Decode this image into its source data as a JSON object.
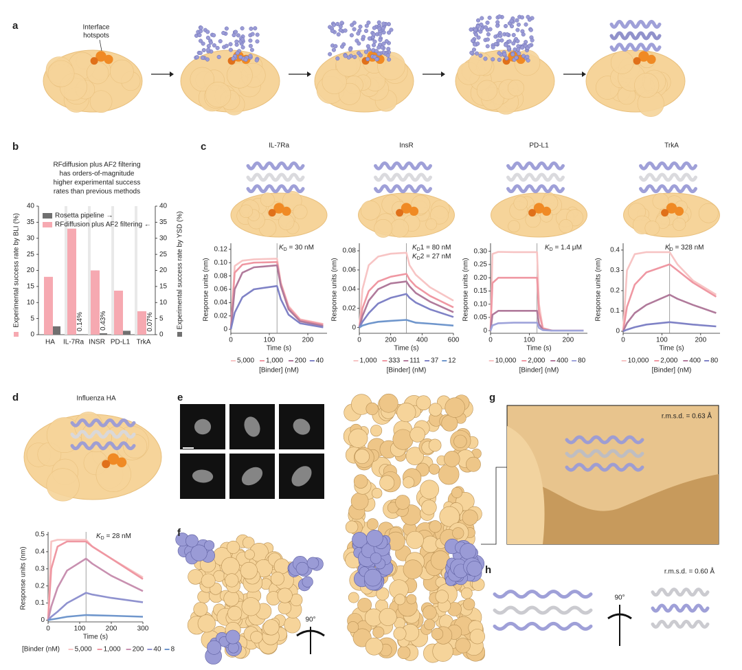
{
  "panel_labels": [
    "a",
    "b",
    "c",
    "d",
    "e",
    "f",
    "g",
    "h"
  ],
  "panel_a": {
    "annotation_lines": [
      "Interface",
      "hotspots"
    ]
  },
  "annotations": {
    "rmsd_g": "r.m.s.d. = 0.63 Å",
    "rmsd_h": "r.m.s.d. = 0.60 Å",
    "rotation_f": "90°",
    "rotation_h": "90°"
  },
  "chart_data": [
    {
      "type": "bar",
      "title_lines": [
        "RFdiffusion plus AF2 filtering",
        "has orders-of-magnitude",
        "higher experimental success",
        "rates than previous methods"
      ],
      "categories": [
        "HA",
        "IL-7Ra",
        "INSR",
        "PD-L1",
        "TrkA"
      ],
      "series": [
        {
          "name": "Rosetta pipeline →",
          "color": "#707070",
          "axis": "y2",
          "values": [
            2.6,
            0.14,
            0.43,
            1.2,
            0.07
          ],
          "value_labels": [
            null,
            "0.14%",
            "0.43%",
            null,
            "0.07%"
          ]
        },
        {
          "name": "RFdiffusion plus AF2 filtering ←",
          "color": "#f6a9b1",
          "values": [
            18,
            33,
            20,
            13.7,
            7.3
          ]
        }
      ],
      "ylabel": "Experimental success rate by BLI (%)",
      "y2label": "Experimental success rate by YSD (%)",
      "ylim": [
        0,
        40
      ],
      "yticks": [
        0,
        5,
        10,
        15,
        20,
        25,
        30,
        35,
        40
      ],
      "y2lim": [
        0,
        40
      ],
      "y2ticks": [
        0,
        5,
        10,
        15,
        20,
        25,
        30,
        35,
        40
      ],
      "legend": "upper left"
    },
    {
      "type": "line",
      "title": "IL-7Ra",
      "xlabel": "Time (s)",
      "ylabel": "Response units (nm)",
      "x": [
        0,
        10,
        30,
        60,
        120,
        130,
        150,
        180,
        240
      ],
      "xlim": [
        0,
        250
      ],
      "xticks": [
        0,
        100,
        200
      ],
      "ylim": [
        -0.006,
        0.125
      ],
      "yticks": [
        0,
        0.02,
        0.04,
        0.06,
        0.08,
        {
          "value": 0.1,
          "label": "0.10"
        },
        0.12
      ],
      "dissociation_start": 120,
      "kd": [
        {
          "symbol": "K",
          "subscript": "D",
          "rest": " = 30 nM"
        }
      ],
      "legend_title": "[Binder] (nM)",
      "series": [
        {
          "name": "5,000",
          "color": "#f7c4c4",
          "values": [
            0,
            0.095,
            0.103,
            0.105,
            0.106,
            0.07,
            0.035,
            0.015,
            0.008
          ]
        },
        {
          "name": "1,000",
          "color": "#ef97a2",
          "values": [
            0,
            0.085,
            0.097,
            0.1,
            0.101,
            0.068,
            0.033,
            0.014,
            0.007
          ]
        },
        {
          "name": "200",
          "color": "#b07a9b",
          "values": [
            0,
            0.06,
            0.085,
            0.093,
            0.096,
            0.065,
            0.03,
            0.012,
            0.005
          ]
        },
        {
          "name": "40",
          "color": "#7f82c6",
          "values": [
            0,
            0.025,
            0.048,
            0.06,
            0.065,
            0.045,
            0.022,
            0.009,
            0.003
          ]
        }
      ]
    },
    {
      "type": "line",
      "title": "InsR",
      "xlabel": "Time (s)",
      "ylabel": "Response units (nm)",
      "x": [
        0,
        20,
        60,
        120,
        200,
        300,
        320,
        360,
        450,
        600
      ],
      "xlim": [
        0,
        600
      ],
      "xticks": [
        0,
        200,
        400,
        600
      ],
      "ylim": [
        -0.006,
        0.085
      ],
      "yticks": [
        0,
        0.02,
        0.04,
        0.06,
        0.08
      ],
      "dissociation_start": 300,
      "kd": [
        {
          "symbol": "K",
          "subscript": "D",
          "rest": "1 = 80 nM"
        },
        {
          "symbol": "K",
          "subscript": "D",
          "rest": "2 = 27 nM"
        }
      ],
      "legend_title": "[Binder] (nM)",
      "series": [
        {
          "name": "1,000",
          "color": "#f7c4c4",
          "values": [
            0,
            0.04,
            0.065,
            0.074,
            0.077,
            0.078,
            0.065,
            0.055,
            0.042,
            0.028
          ]
        },
        {
          "name": "333",
          "color": "#ef97a2",
          "values": [
            0,
            0.02,
            0.038,
            0.048,
            0.053,
            0.056,
            0.05,
            0.043,
            0.033,
            0.021
          ]
        },
        {
          "name": "111",
          "color": "#b07a9b",
          "values": [
            0,
            0.012,
            0.028,
            0.04,
            0.046,
            0.048,
            0.043,
            0.036,
            0.027,
            0.016
          ]
        },
        {
          "name": "37",
          "color": "#7f82c6",
          "values": [
            0,
            0.006,
            0.015,
            0.025,
            0.031,
            0.035,
            0.031,
            0.026,
            0.019,
            0.011
          ]
        },
        {
          "name": "12",
          "color": "#6f96cc",
          "values": [
            0,
            0.002,
            0.004,
            0.006,
            0.007,
            0.008,
            0.007,
            0.005,
            0.004,
            0.002
          ]
        }
      ]
    },
    {
      "type": "line",
      "title": "PD-L1",
      "xlabel": "Time (s)",
      "ylabel": "Response units (nm)",
      "x": [
        0,
        5,
        20,
        60,
        120,
        125,
        135,
        160,
        240
      ],
      "xlim": [
        0,
        250
      ],
      "xticks": [
        0,
        100,
        200
      ],
      "ylim": [
        -0.01,
        0.32
      ],
      "yticks": [
        0,
        0.05,
        {
          "value": 0.1,
          "label": "0.10"
        },
        0.15,
        {
          "value": 0.2,
          "label": "0.20"
        },
        0.25,
        {
          "value": 0.3,
          "label": "0.30"
        }
      ],
      "dissociation_start": 120,
      "kd": [
        {
          "symbol": "K",
          "subscript": "D",
          "rest": " = 1.4 μM"
        }
      ],
      "legend_title": "[Binder] (nM)",
      "series": [
        {
          "name": "10,000",
          "color": "#f7c4c4",
          "values": [
            0,
            0.29,
            0.298,
            0.297,
            0.297,
            0.1,
            0.01,
            0,
            0
          ]
        },
        {
          "name": "2,000",
          "color": "#ef97a2",
          "values": [
            0,
            0.18,
            0.2,
            0.2,
            0.2,
            0.07,
            0.008,
            0,
            0
          ]
        },
        {
          "name": "400",
          "color": "#b07a9b",
          "values": [
            0,
            0.06,
            0.075,
            0.075,
            0.075,
            0.025,
            0.004,
            0,
            0
          ]
        },
        {
          "name": "80",
          "color": "#9ea3da",
          "values": [
            0,
            0.02,
            0.028,
            0.03,
            0.03,
            0.01,
            0.002,
            0,
            0
          ]
        }
      ]
    },
    {
      "type": "line",
      "title": "TrkA",
      "xlabel": "Time (s)",
      "ylabel": "Response units (nm)",
      "x": [
        0,
        10,
        30,
        60,
        120,
        140,
        180,
        240
      ],
      "xlim": [
        0,
        250
      ],
      "xticks": [
        0,
        100,
        200
      ],
      "ylim": [
        -0.01,
        0.42
      ],
      "yticks": [
        0,
        0.1,
        0.2,
        0.3,
        0.4
      ],
      "dissociation_start": 120,
      "kd": [
        {
          "symbol": "K",
          "subscript": "D",
          "rest": " = 328 nM"
        }
      ],
      "legend_title": "[Binder] (nM)",
      "series": [
        {
          "name": "10,000",
          "color": "#f7c4c4",
          "values": [
            0,
            0.3,
            0.38,
            0.39,
            0.39,
            0.33,
            0.25,
            0.18
          ]
        },
        {
          "name": "2,000",
          "color": "#ef97a2",
          "values": [
            0,
            0.12,
            0.23,
            0.29,
            0.33,
            0.3,
            0.24,
            0.17
          ]
        },
        {
          "name": "400",
          "color": "#b07a9b",
          "values": [
            0,
            0.04,
            0.09,
            0.13,
            0.18,
            0.16,
            0.13,
            0.09
          ]
        },
        {
          "name": "80",
          "color": "#7f82c6",
          "values": [
            0,
            0.008,
            0.02,
            0.033,
            0.045,
            0.041,
            0.033,
            0.024
          ]
        }
      ]
    },
    {
      "type": "line",
      "title": "Influenza HA",
      "xlabel": "Time (s)",
      "ylabel": "Response units (nm)",
      "x": [
        0,
        10,
        30,
        60,
        120,
        140,
        200,
        300
      ],
      "xlim": [
        0,
        300
      ],
      "xticks": [
        0,
        100,
        200,
        300
      ],
      "ylim": [
        -0.01,
        0.5
      ],
      "yticks": [
        0,
        0.1,
        0.2,
        0.3,
        0.4,
        0.5
      ],
      "dissociation_start": 120,
      "kd": [
        {
          "symbol": "K",
          "subscript": "D",
          "rest": " = 28 nM"
        }
      ],
      "legend_title": "[Binder (nM)",
      "series": [
        {
          "name": "5,000",
          "color": "#f7c4c4",
          "values": [
            0,
            0.46,
            0.47,
            0.47,
            0.47,
            0.43,
            0.36,
            0.25
          ]
        },
        {
          "name": "1,000",
          "color": "#ef97a2",
          "values": [
            0,
            0.3,
            0.43,
            0.46,
            0.46,
            0.43,
            0.36,
            0.24
          ]
        },
        {
          "name": "200",
          "color": "#c890b0",
          "values": [
            0,
            0.08,
            0.19,
            0.29,
            0.36,
            0.33,
            0.26,
            0.17
          ]
        },
        {
          "name": "40",
          "color": "#8f92cf",
          "values": [
            0,
            0.02,
            0.05,
            0.1,
            0.16,
            0.15,
            0.13,
            0.105
          ]
        },
        {
          "name": "8",
          "color": "#6f96cc",
          "values": [
            0,
            0.004,
            0.01,
            0.02,
            0.03,
            0.029,
            0.026,
            0.02
          ]
        }
      ]
    }
  ]
}
